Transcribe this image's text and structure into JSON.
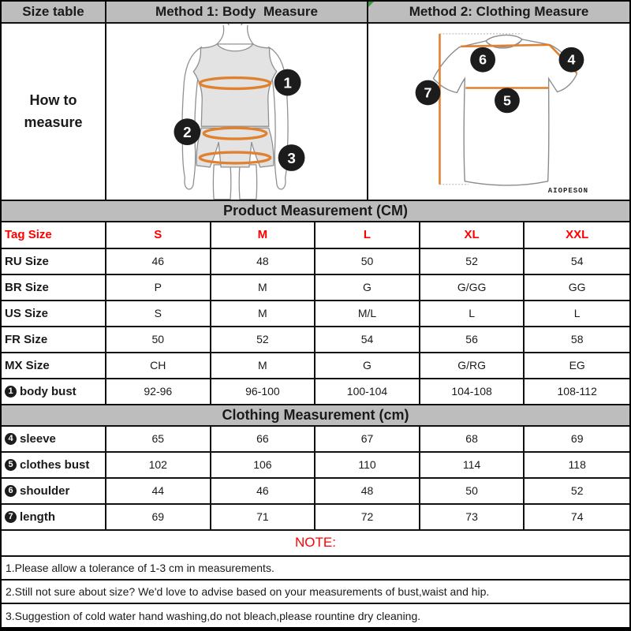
{
  "top": {
    "size_table_label": "Size table",
    "method1_title": "Method 1: Body  Measure",
    "method2_title": "Method 2: Clothing Measure",
    "how_to_line1": "How to",
    "how_to_line2": "measure",
    "brand": "AIOPESON"
  },
  "product_table": {
    "title": "Product Measurement (CM)",
    "tag_row": {
      "label": "Tag Size",
      "sizes": [
        "S",
        "M",
        "L",
        "XL",
        "XXL"
      ]
    },
    "rows": [
      {
        "label": "RU Size",
        "values": [
          "46",
          "48",
          "50",
          "52",
          "54"
        ]
      },
      {
        "label": "BR Size",
        "values": [
          "P",
          "M",
          "G",
          "G/GG",
          "GG"
        ]
      },
      {
        "label": "US Size",
        "values": [
          "S",
          "M",
          "M/L",
          "L",
          "L"
        ]
      },
      {
        "label": "FR Size",
        "values": [
          "50",
          "52",
          "54",
          "56",
          "58"
        ]
      },
      {
        "label": "MX Size",
        "values": [
          "CH",
          "M",
          "G",
          "G/RG",
          "EG"
        ]
      },
      {
        "marker": "1",
        "label": "body bust",
        "values": [
          "92-96",
          "96-100",
          "100-104",
          "104-108",
          "108-112"
        ]
      }
    ]
  },
  "clothing_table": {
    "title": "Clothing Measurement (cm)",
    "rows": [
      {
        "marker": "4",
        "label": "sleeve",
        "values": [
          "65",
          "66",
          "67",
          "68",
          "69"
        ]
      },
      {
        "marker": "5",
        "label": "clothes bust",
        "values": [
          "102",
          "106",
          "110",
          "114",
          "118"
        ]
      },
      {
        "marker": "6",
        "label": "shoulder",
        "values": [
          "44",
          "46",
          "48",
          "50",
          "52"
        ]
      },
      {
        "marker": "7",
        "label": "length",
        "values": [
          "69",
          "71",
          "72",
          "73",
          "74"
        ]
      }
    ]
  },
  "notes": {
    "title": "NOTE:",
    "items": [
      "1.Please allow a tolerance of 1-3 cm in measurements.",
      "2.Still not sure about size? We'd love to advise based on your measurements of bust,waist and hip.",
      "3.Suggestion of cold water hand washing,do not bleach,please rountine dry cleaning."
    ]
  },
  "markers": {
    "body": [
      "1",
      "2",
      "3"
    ],
    "clothing": [
      "4",
      "5",
      "6",
      "7"
    ]
  },
  "colors": {
    "header_bg": "#bdbdbd",
    "accent_red": "#fe0000",
    "measure_orange": "#e0812f",
    "marker_black": "#1c1c1c"
  }
}
